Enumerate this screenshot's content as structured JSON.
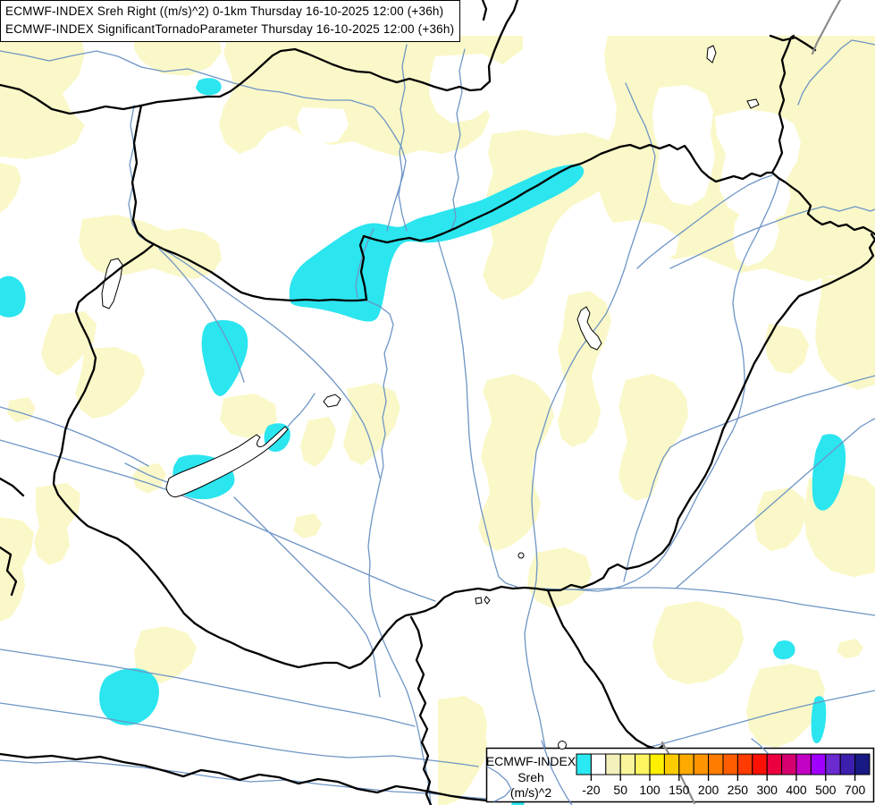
{
  "title_bar": {
    "line1": "ECMWF-INDEX Sreh Right ((m/s)^2) 0-1km Thursday 16-10-2025 12:00 (+36h)",
    "line2": "ECMWF-INDEX SignificantTornadoParameter Thursday 16-10-2025 12:00 (+36h)"
  },
  "legend": {
    "line1": "ECMWF-INDEX",
    "line2": "Sreh",
    "line3": "(m/s)^2",
    "tick_labels": [
      "-20",
      "50",
      "100",
      "150",
      "200",
      "250",
      "300",
      "400",
      "500",
      "700"
    ],
    "tick_boundaries": [
      1,
      3,
      5,
      7,
      9,
      11,
      13,
      15,
      17,
      19
    ],
    "palette": [
      "#2BE9F2",
      "#FFFFFF",
      "#F3F0BB",
      "#F9F59B",
      "#FCF55F",
      "#FFF000",
      "#FCCB00",
      "#FFAA00",
      "#FF9400",
      "#FF7C00",
      "#FF5D00",
      "#FF3B00",
      "#FD1106",
      "#EB0040",
      "#D6006E",
      "#C303C3",
      "#A000FF",
      "#6A2BD0",
      "#3D1FAE",
      "#191983"
    ]
  },
  "map": {
    "colors": {
      "background": "#FFFFFF",
      "fill_low_positive": "#FAF8C8",
      "fill_negative": "#2BE5EF",
      "river": "#6E95C5",
      "border": "#000000",
      "border_gray": "#8C8C8C",
      "lake_outline": "#000000"
    }
  },
  "chart_data": {
    "type": "heatmap",
    "title": "ECMWF-INDEX Storm relative helicity (Sreh) with Significant Tornado Parameter, Hungary/Carpathian basin",
    "legend_units": "(m/s)^2",
    "scale_boundary_values": [
      -20,
      50,
      100,
      150,
      200,
      250,
      300,
      400,
      500,
      700
    ],
    "legend_position": "bottom-right",
    "shaded_classes_visible": [
      "< -20 (cyan)",
      "25-75 (pale yellow)"
    ]
  }
}
